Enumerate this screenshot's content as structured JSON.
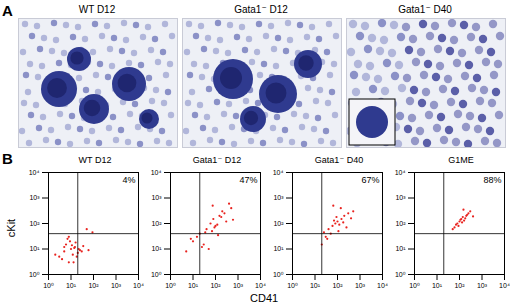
{
  "panel_a": {
    "label": "A",
    "images": [
      {
        "label": "WT D12",
        "inset": false
      },
      {
        "label": "Gata1⁻ D12",
        "inset": false
      },
      {
        "label": "Gata1⁻ D40",
        "inset": true
      }
    ]
  },
  "panel_b": {
    "label": "B",
    "x_label": "CD41",
    "y_label": "cKit"
  },
  "chart_data": [
    {
      "type": "scatter",
      "title": "WT D12",
      "log": true,
      "color": "#e8231f",
      "gated_percent": {
        "value": 4,
        "label": "4%"
      },
      "gate": {
        "x": 20,
        "y": 40
      },
      "xlim": [
        1,
        10000
      ],
      "ylim": [
        1,
        10000
      ],
      "xticks": [
        {
          "value": 1,
          "label": "10⁰"
        },
        {
          "value": 10,
          "label": "10¹"
        },
        {
          "value": 100,
          "label": "10²"
        },
        {
          "value": 1000,
          "label": "10³"
        },
        {
          "value": 10000,
          "label": "10⁴"
        }
      ],
      "yticks": [
        {
          "value": 1,
          "label": "10⁰"
        },
        {
          "value": 10,
          "label": "10¹"
        },
        {
          "value": 100,
          "label": "10²"
        },
        {
          "value": 1000,
          "label": "10³"
        },
        {
          "value": 10000,
          "label": "10⁴"
        }
      ],
      "x": [
        3,
        5,
        8,
        10,
        12,
        15,
        6,
        20,
        25,
        9,
        4,
        14,
        18,
        7,
        11,
        30,
        2,
        16,
        13,
        22,
        35,
        8,
        5,
        60,
        50,
        90
      ],
      "y": [
        5,
        8,
        3,
        10,
        6,
        12,
        15,
        7,
        9,
        20,
        4,
        11,
        5,
        25,
        14,
        8,
        6,
        18,
        3,
        10,
        13,
        30,
        12,
        9,
        60,
        45
      ]
    },
    {
      "type": "scatter",
      "title": "Gata1⁻ D12",
      "log": true,
      "color": "#e8231f",
      "gated_percent": {
        "value": 47,
        "label": "47%"
      },
      "gate": {
        "x": 20,
        "y": 40
      },
      "xlim": [
        1,
        10000
      ],
      "ylim": [
        1,
        10000
      ],
      "xticks": [
        {
          "value": 1,
          "label": "10⁰"
        },
        {
          "value": 10,
          "label": "10¹"
        },
        {
          "value": 100,
          "label": "10²"
        },
        {
          "value": 1000,
          "label": "10³"
        },
        {
          "value": 10000,
          "label": "10⁴"
        }
      ],
      "yticks": [
        {
          "value": 1,
          "label": "10⁰"
        },
        {
          "value": 10,
          "label": "10¹"
        },
        {
          "value": 100,
          "label": "10²"
        },
        {
          "value": 1000,
          "label": "10³"
        },
        {
          "value": 10000,
          "label": "10⁴"
        }
      ],
      "x": [
        5,
        10,
        20,
        40,
        60,
        80,
        100,
        150,
        200,
        300,
        500,
        30,
        70,
        120,
        250,
        15,
        50,
        90,
        180,
        400,
        8,
        35,
        130,
        600,
        25,
        75
      ],
      "y": [
        8,
        20,
        40,
        60,
        100,
        150,
        80,
        200,
        300,
        120,
        400,
        15,
        50,
        90,
        250,
        30,
        10,
        70,
        180,
        600,
        25,
        45,
        35,
        140,
        12,
        500
      ]
    },
    {
      "type": "scatter",
      "title": "Gata1⁻ D40",
      "log": true,
      "color": "#e8231f",
      "gated_percent": {
        "value": 67,
        "label": "67%"
      },
      "gate": {
        "x": 20,
        "y": 40
      },
      "xlim": [
        1,
        10000
      ],
      "ylim": [
        1,
        10000
      ],
      "xticks": [
        {
          "value": 1,
          "label": "10⁰"
        },
        {
          "value": 10,
          "label": "10¹"
        },
        {
          "value": 100,
          "label": "10²"
        },
        {
          "value": 1000,
          "label": "10³"
        },
        {
          "value": 10000,
          "label": "10⁴"
        }
      ],
      "yticks": [
        {
          "value": 1,
          "label": "10⁰"
        },
        {
          "value": 10,
          "label": "10¹"
        },
        {
          "value": 100,
          "label": "10²"
        },
        {
          "value": 1000,
          "label": "10³"
        },
        {
          "value": 10000,
          "label": "10⁴"
        }
      ],
      "x": [
        20,
        30,
        40,
        60,
        80,
        100,
        120,
        150,
        200,
        250,
        300,
        500,
        50,
        70,
        90,
        110,
        180,
        35,
        140,
        400,
        25,
        65
      ],
      "y": [
        15,
        30,
        60,
        80,
        100,
        120,
        90,
        150,
        200,
        70,
        250,
        300,
        40,
        130,
        180,
        50,
        110,
        25,
        400,
        160,
        45,
        500
      ]
    },
    {
      "type": "scatter",
      "title": "G1ME",
      "log": true,
      "color": "#e8231f",
      "gated_percent": {
        "value": 88,
        "label": "88%"
      },
      "gate": {
        "x": 20,
        "y": 40
      },
      "xlim": [
        1,
        10000
      ],
      "ylim": [
        1,
        10000
      ],
      "xticks": [
        {
          "value": 1,
          "label": "10⁰"
        },
        {
          "value": 10,
          "label": "10¹"
        },
        {
          "value": 100,
          "label": "10²"
        },
        {
          "value": 1000,
          "label": "10³"
        },
        {
          "value": 10000,
          "label": "10⁴"
        }
      ],
      "yticks": [
        {
          "value": 1,
          "label": "10⁰"
        },
        {
          "value": 10,
          "label": "10¹"
        },
        {
          "value": 100,
          "label": "10²"
        },
        {
          "value": 1000,
          "label": "10³"
        },
        {
          "value": 10000,
          "label": "10⁴"
        }
      ],
      "x": [
        50,
        70,
        80,
        100,
        120,
        140,
        160,
        200,
        250,
        300,
        90,
        110,
        130,
        180,
        220,
        60,
        150,
        400
      ],
      "y": [
        60,
        90,
        100,
        120,
        150,
        180,
        130,
        200,
        250,
        300,
        80,
        140,
        110,
        160,
        220,
        70,
        350,
        190
      ]
    }
  ]
}
